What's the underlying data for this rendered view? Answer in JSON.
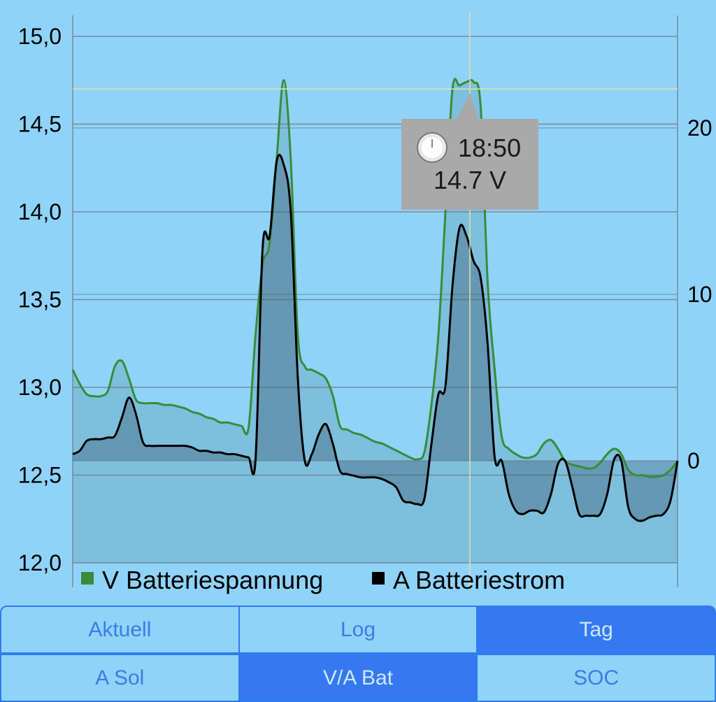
{
  "chart_data": {
    "type": "area",
    "x_labels": [],
    "left_axis": {
      "ticks": [
        "15,0",
        "14,5",
        "14,0",
        "13,5",
        "13,0",
        "12,5",
        "12,0"
      ],
      "ylim": [
        12.0,
        15.0
      ]
    },
    "right_axis": {
      "ticks": [
        "20",
        "10",
        "0"
      ]
    },
    "series": [
      {
        "name": "V Batteriespannung",
        "axis": "left",
        "color": "#3a8b3a",
        "values": [
          13.1,
          13.02,
          12.96,
          12.95,
          12.95,
          12.98,
          13.12,
          13.15,
          13.05,
          12.93,
          12.91,
          12.91,
          12.91,
          12.9,
          12.9,
          12.89,
          12.88,
          12.86,
          12.85,
          12.83,
          12.82,
          12.8,
          12.8,
          12.79,
          12.78,
          12.77,
          13.3,
          13.7,
          13.82,
          14.3,
          14.75,
          14.3,
          13.3,
          13.12,
          13.1,
          13.08,
          13.05,
          12.95,
          12.78,
          12.76,
          12.74,
          12.73,
          12.71,
          12.69,
          12.68,
          12.66,
          12.64,
          12.62,
          12.6,
          12.59,
          12.63,
          12.9,
          13.3,
          14.0,
          14.7,
          14.72,
          14.74,
          14.74,
          14.6,
          13.6,
          13.1,
          12.72,
          12.65,
          12.62,
          12.6,
          12.6,
          12.62,
          12.68,
          12.7,
          12.65,
          12.58,
          12.56,
          12.55,
          12.54,
          12.54,
          12.57,
          12.62,
          12.65,
          12.62,
          12.53,
          12.5,
          12.5,
          12.49,
          12.49,
          12.5,
          12.53,
          12.58
        ]
      },
      {
        "name": "A Batteriestrom",
        "axis": "right",
        "color": "#000000",
        "values": [
          0.4,
          0.6,
          1.2,
          1.3,
          1.3,
          1.4,
          1.5,
          2.6,
          3.8,
          2.8,
          1.1,
          0.9,
          0.9,
          0.9,
          0.9,
          0.9,
          0.9,
          0.8,
          0.6,
          0.6,
          0.5,
          0.5,
          0.4,
          0.4,
          0.3,
          0.2,
          0.1,
          12.8,
          13.5,
          18.0,
          17.8,
          15.0,
          5.0,
          0.0,
          0.4,
          1.6,
          2.2,
          1.0,
          -0.6,
          -0.8,
          -0.9,
          -1.0,
          -1.0,
          -1.0,
          -1.1,
          -1.3,
          -1.6,
          -2.4,
          -2.5,
          -2.6,
          -2.3,
          1.0,
          4.0,
          4.5,
          10.5,
          14.0,
          13.5,
          12.0,
          11.0,
          7.0,
          0.2,
          0.0,
          -2.0,
          -3.0,
          -3.2,
          -3.0,
          -3.0,
          -3.1,
          -2.0,
          -0.2,
          0.0,
          -1.5,
          -3.2,
          -3.3,
          -3.3,
          -3.2,
          -2.0,
          0.1,
          0.0,
          -2.8,
          -3.5,
          -3.6,
          -3.4,
          -3.3,
          -3.2,
          -2.4,
          0.0
        ]
      }
    ],
    "cursor": {
      "time": "18:50",
      "value": "14.7 V"
    }
  },
  "legend": [
    {
      "label": "V Batteriespannung",
      "color": "#3a8b3a"
    },
    {
      "label": "A Batteriestrom",
      "color": "#000000"
    }
  ],
  "tabs": {
    "row1": [
      {
        "label": "Aktuell",
        "active": false
      },
      {
        "label": "Log",
        "active": false
      },
      {
        "label": "Tag",
        "active": true
      }
    ],
    "row2": [
      {
        "label": "A Sol",
        "active": false
      },
      {
        "label": "V/A Bat",
        "active": true
      },
      {
        "label": "SOC",
        "active": false
      }
    ]
  }
}
